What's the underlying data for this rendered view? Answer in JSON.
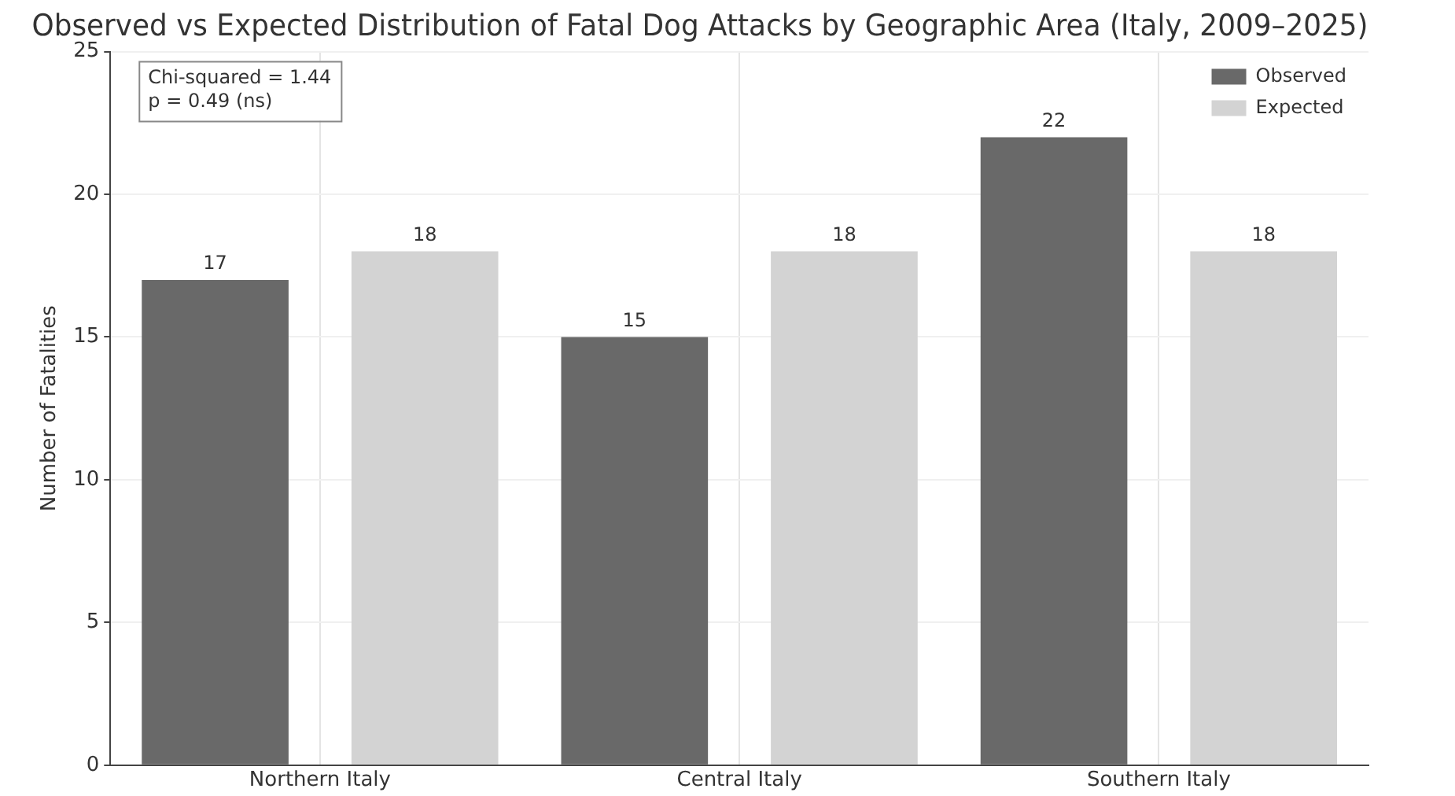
{
  "chart_data": {
    "type": "bar",
    "title": "Observed vs Expected Distribution of Fatal Dog Attacks by Geographic Area (Italy, 2009–2025)",
    "ylabel": "Number of Fatalities",
    "categories": [
      "Northern Italy",
      "Central Italy",
      "Southern Italy"
    ],
    "series": [
      {
        "name": "Observed",
        "color": "#696969",
        "values": [
          17,
          15,
          22
        ]
      },
      {
        "name": "Expected",
        "color": "#d3d3d3",
        "values": [
          18,
          18,
          18
        ]
      }
    ],
    "ylim": [
      0,
      25
    ],
    "yticks": [
      0,
      5,
      10,
      15,
      20,
      25
    ],
    "grid": true,
    "legend": "top right",
    "data_labels": true,
    "annotations": [
      "Chi-squared = 1.44\np = 0.49 (ns)"
    ]
  }
}
